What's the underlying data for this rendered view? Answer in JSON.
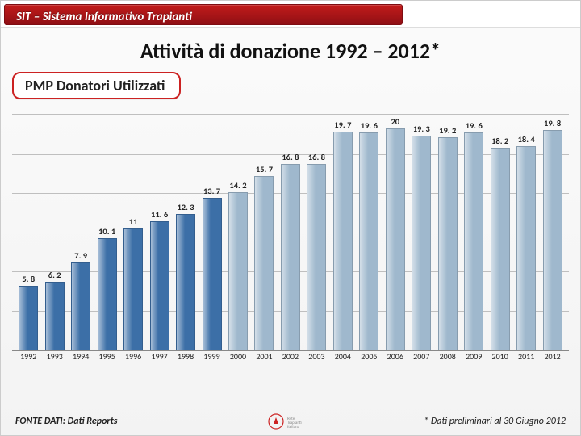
{
  "header": {
    "title": "SIT – Sistema Informativo Trapianti"
  },
  "title": "Attività di donazione  1992 – 2012*",
  "subtitle": "PMP Donatori Utilizzati",
  "chart": {
    "type": "bar",
    "ymax": 22,
    "grid_positions": [
      0.16,
      0.32,
      0.48,
      0.64,
      0.8,
      0.965
    ],
    "grid_color": "#bfbfbf",
    "categories": [
      "1992",
      "1993",
      "1994",
      "1995",
      "1996",
      "1997",
      "1998",
      "1999",
      "2000",
      "2001",
      "2002",
      "2003",
      "2004",
      "2005",
      "2006",
      "2007",
      "2008",
      "2009",
      "2010",
      "2011",
      "2012"
    ],
    "values": [
      5.8,
      6.2,
      7.9,
      10.1,
      11,
      11.6,
      12.3,
      13.7,
      14.2,
      15.7,
      16.8,
      16.8,
      19.7,
      19.6,
      20,
      19.3,
      19.2,
      19.6,
      18.2,
      18.4,
      19.8
    ],
    "value_labels": [
      "5. 8",
      "6. 2",
      "7. 9",
      "10. 1",
      "11",
      "11. 6",
      "12. 3",
      "13. 7",
      "14. 2",
      "15. 7",
      "16. 8",
      "16. 8",
      "19. 7",
      "19. 6",
      "20",
      "19. 3",
      "19. 2",
      "19. 6",
      "18. 2",
      "18. 4",
      "19. 8"
    ],
    "bar_colors": [
      "#3c6fa7",
      "#3c6fa7",
      "#3c6fa7",
      "#3c6fa7",
      "#3c6fa7",
      "#3c6fa7",
      "#3c6fa7",
      "#3c6fa7",
      "#9fb8cd",
      "#9fb8cd",
      "#9fb8cd",
      "#9fb8cd",
      "#9fb8cd",
      "#9fb8cd",
      "#9fb8cd",
      "#9fb8cd",
      "#9fb8cd",
      "#9fb8cd",
      "#9fb8cd",
      "#9fb8cd",
      "#9fb8cd"
    ],
    "bar_width_pct": 74,
    "label_fontsize": 10.5,
    "xaxis_fontsize": 10
  },
  "footer": {
    "left": "FONTE DATI: Dati Reports",
    "right": "* Dati  preliminari al 30 Giugno 2012"
  },
  "colors": {
    "accent": "#c22",
    "header_grad_top": "#c31c1b",
    "header_grad_bottom": "#8f0f14"
  }
}
